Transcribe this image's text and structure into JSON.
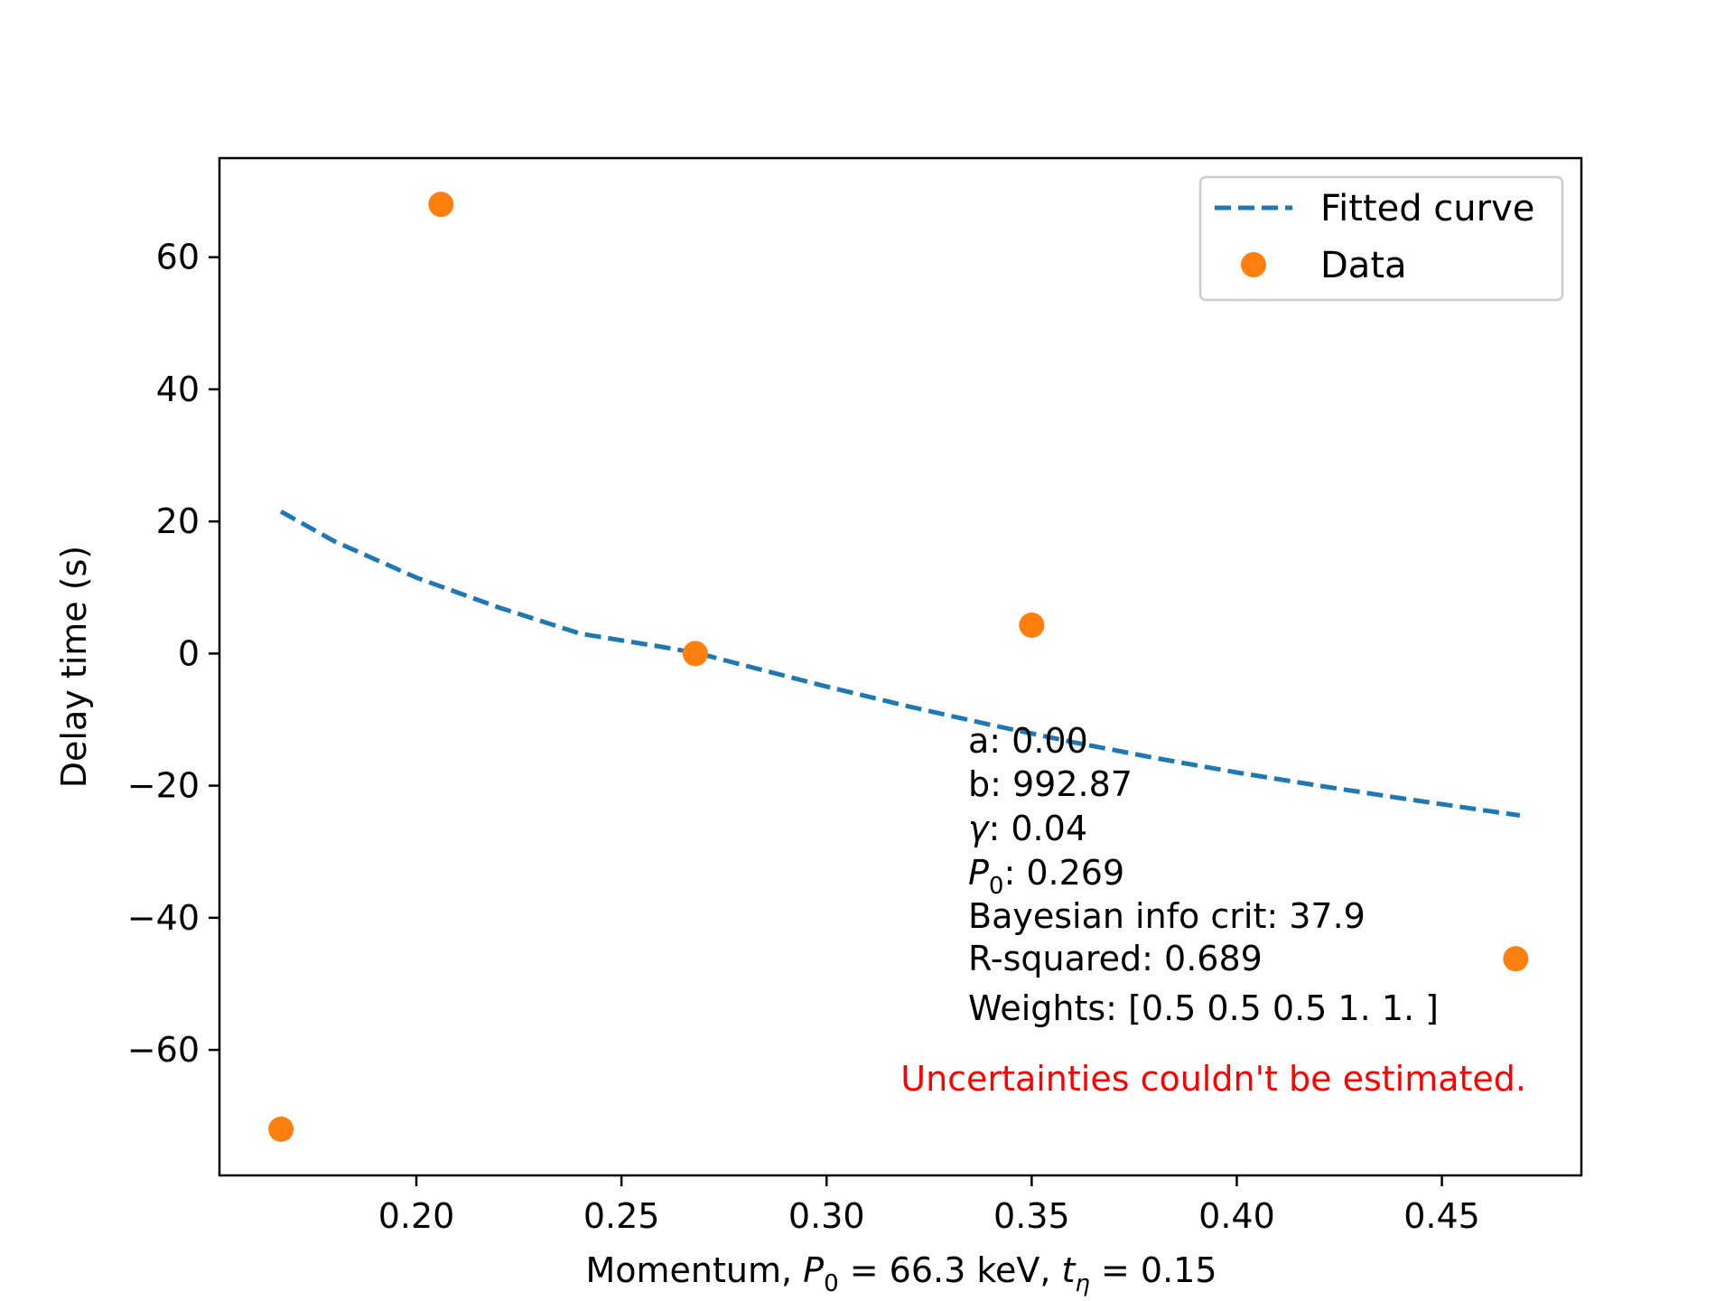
{
  "chart_data": {
    "type": "scatter",
    "xlabel": {
      "prefix": "Momentum, ",
      "p_sym": "P",
      "p_sub": "0",
      "p_val": " = 66.3 keV, ",
      "t_sym": "t",
      "t_sub": "η",
      "t_val": " = 0.15"
    },
    "ylabel": "Delay time (s)",
    "xlim": [
      0.152,
      0.484
    ],
    "ylim": [
      -79,
      75
    ],
    "xticks": [
      0.2,
      0.25,
      0.3,
      0.35,
      0.4,
      0.45
    ],
    "xtick_labels": [
      "0.20",
      "0.25",
      "0.30",
      "0.35",
      "0.40",
      "0.45"
    ],
    "yticks": [
      60,
      40,
      20,
      0,
      -20,
      -40,
      -60
    ],
    "ytick_labels": [
      "60",
      "40",
      "20",
      "0",
      "−20",
      "−40",
      "−60"
    ],
    "grid": false,
    "legend_position": "upper right",
    "series": [
      {
        "name": "Fitted curve",
        "style": "dashed-line",
        "color": "#1f77b4",
        "x": [
          0.167,
          0.18,
          0.2,
          0.22,
          0.24,
          0.26,
          0.269,
          0.28,
          0.3,
          0.32,
          0.34,
          0.36,
          0.38,
          0.4,
          0.42,
          0.44,
          0.46,
          0.469
        ],
        "y": [
          21.5,
          17.0,
          11.5,
          7.0,
          3.0,
          1.0,
          0.0,
          -1.8,
          -5.0,
          -8.0,
          -10.8,
          -13.4,
          -15.8,
          -18.0,
          -20.0,
          -21.9,
          -23.7,
          -24.5
        ]
      },
      {
        "name": "Data",
        "style": "markers",
        "color": "#ff7f0e",
        "x": [
          0.167,
          0.206,
          0.268,
          0.35,
          0.468
        ],
        "y": [
          -72.0,
          68.0,
          0.0,
          4.3,
          -46.2
        ]
      }
    ],
    "annotations": {
      "a": "a: 0.00",
      "b": "b: 992.87",
      "gamma_sym": "γ",
      "gamma_val": ": 0.04",
      "p0_sym": "P",
      "p0_sub": "0",
      "p0_val": ": 0.269",
      "bic": "Bayesian info crit: 37.9",
      "r2": "R-squared: 0.689",
      "weights": "Weights: [0.5 0.5 0.5 1.  1. ]",
      "warning": "Uncertainties couldn't be estimated.",
      "warning_color": "#ff0000"
    }
  }
}
